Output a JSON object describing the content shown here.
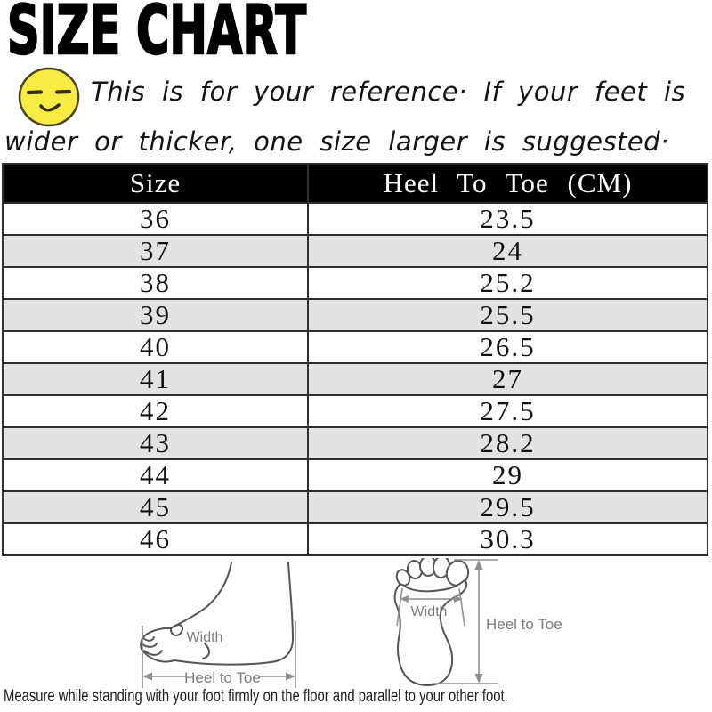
{
  "title": "SIZE CHART",
  "note": {
    "line1": "This is for your reference· If your feet is",
    "line2": "wider or thicker, one size larger is suggested·"
  },
  "chart_data": {
    "type": "table",
    "title": "SIZE CHART",
    "columns": [
      "Size",
      "Heel To Toe (CM)"
    ],
    "rows": [
      [
        "36",
        "23.5"
      ],
      [
        "37",
        "24"
      ],
      [
        "38",
        "25.2"
      ],
      [
        "39",
        "25.5"
      ],
      [
        "40",
        "26.5"
      ],
      [
        "41",
        "27"
      ],
      [
        "42",
        "27.5"
      ],
      [
        "43",
        "28.2"
      ],
      [
        "44",
        "29"
      ],
      [
        "45",
        "29.5"
      ],
      [
        "46",
        "30.3"
      ]
    ]
  },
  "diagrams": {
    "side_view": {
      "width_label": "Width",
      "length_label": "Heel to Toe"
    },
    "top_view": {
      "width_label": "Width",
      "length_label": "Heel to Toe"
    }
  },
  "footer_note": "Measure while standing with your foot firmly on the floor and parallel to your other foot.",
  "icons": {
    "smiley": "smiley-face-icon"
  },
  "colors": {
    "header_bg": "#000000",
    "header_text": "#ffffff",
    "row_stripe": "#e2e2e2",
    "table_border": "#2f2f2f",
    "smiley_fill": "#f8ec42",
    "diagram_line": "#8f8f8f",
    "foot_outline": "#555555"
  }
}
